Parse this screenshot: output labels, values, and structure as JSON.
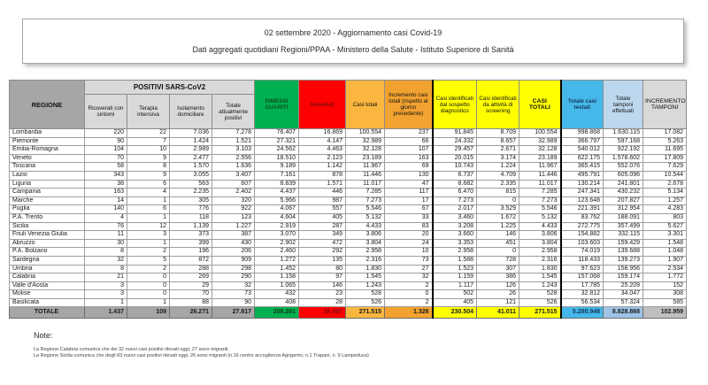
{
  "header": {
    "line1": "02 settembre 2020 - Aggiornamento casi Covid-19",
    "line2": "Dati aggregati quotidiani Regioni/PPAA - Ministero della Salute - Istituto Superiore di Sanità"
  },
  "table": {
    "regione_header": "REGIONE",
    "positivi_group_header": "POSITIVI SARS-CoV2",
    "columns": [
      "Ricoverati con sintomi",
      "Terapia intensiva",
      "Isolamento domiciliare",
      "Totale attualmente positivi",
      "DIMESSI GUARITI",
      "Deceduti",
      "Casi totali",
      "Incremento casi totali (rispetto al giorno precedente)",
      "Casi identificati dal sospetto diagnostico",
      "Casi identificati da attività di screening",
      "CASI TOTALI",
      "Totale casi testati",
      "Totale tamponi effettuati",
      "INCREMENTO TAMPONI"
    ],
    "rows": [
      {
        "regione": "Lombardia",
        "values": [
          "220",
          "22",
          "7.036",
          "7.278",
          "76.407",
          "16.869",
          "100.554",
          "237",
          "91.845",
          "8.709",
          "100.554",
          "998.868",
          "1.630.115",
          "17.082"
        ]
      },
      {
        "regione": "Piemonte",
        "values": [
          "90",
          "7",
          "1.424",
          "1.521",
          "27.321",
          "4.147",
          "32.989",
          "66",
          "24.332",
          "8.657",
          "32.989",
          "366.797",
          "597.168",
          "5.263"
        ]
      },
      {
        "regione": "Emilia-Romagna",
        "values": [
          "104",
          "10",
          "2.989",
          "3.103",
          "24.562",
          "4.463",
          "32.128",
          "107",
          "29.457",
          "2.671",
          "32.128",
          "540.012",
          "922.192",
          "11.695"
        ]
      },
      {
        "regione": "Veneto",
        "values": [
          "70",
          "9",
          "2.477",
          "2.556",
          "18.510",
          "2.123",
          "23.189",
          "163",
          "20.015",
          "3.174",
          "23.189",
          "622.175",
          "1.578.602",
          "17.809"
        ]
      },
      {
        "regione": "Toscana",
        "values": [
          "58",
          "8",
          "1.570",
          "1.636",
          "9.189",
          "1.142",
          "11.967",
          "69",
          "10.743",
          "1.224",
          "11.967",
          "365.415",
          "552.076",
          "7.629"
        ]
      },
      {
        "regione": "Lazio",
        "values": [
          "343",
          "9",
          "3.055",
          "3.407",
          "7.161",
          "878",
          "11.446",
          "130",
          "6.737",
          "4.709",
          "11.446",
          "495.791",
          "605.096",
          "10.544"
        ]
      },
      {
        "regione": "Liguria",
        "values": [
          "38",
          "6",
          "563",
          "607",
          "8.839",
          "1.571",
          "11.017",
          "47",
          "8.682",
          "2.335",
          "11.017",
          "130.214",
          "241.801",
          "2.678"
        ]
      },
      {
        "regione": "Campania",
        "values": [
          "163",
          "4",
          "2.235",
          "2.402",
          "4.437",
          "446",
          "7.285",
          "117",
          "6.470",
          "815",
          "7.285",
          "247.341",
          "430.232",
          "5.134"
        ]
      },
      {
        "regione": "Marche",
        "values": [
          "14",
          "1",
          "305",
          "320",
          "5.966",
          "987",
          "7.273",
          "17",
          "7.273",
          "0",
          "7.273",
          "123.648",
          "207.827",
          "1.257"
        ]
      },
      {
        "regione": "Puglia",
        "values": [
          "140",
          "6",
          "776",
          "922",
          "4.067",
          "557",
          "5.546",
          "67",
          "2.017",
          "3.529",
          "5.546",
          "221.391",
          "312.954",
          "4.283"
        ]
      },
      {
        "regione": "P.A. Trento",
        "values": [
          "4",
          "1",
          "118",
          "123",
          "4.604",
          "405",
          "5.132",
          "33",
          "3.460",
          "1.672",
          "5.132",
          "83.762",
          "188.091",
          "803"
        ]
      },
      {
        "regione": "Sicilia",
        "values": [
          "76",
          "12",
          "1.139",
          "1.227",
          "2.919",
          "287",
          "4.433",
          "83",
          "3.208",
          "1.225",
          "4.433",
          "272.775",
          "357.499",
          "5.627"
        ]
      },
      {
        "regione": "Friuli Venezia Giulia",
        "values": [
          "11",
          "3",
          "373",
          "387",
          "3.070",
          "349",
          "3.806",
          "20",
          "3.660",
          "146",
          "3.806",
          "154.882",
          "332.115",
          "3.301"
        ]
      },
      {
        "regione": "Abruzzo",
        "values": [
          "30",
          "1",
          "399",
          "430",
          "2.902",
          "472",
          "3.804",
          "24",
          "3.353",
          "451",
          "3.804",
          "103.603",
          "159.429",
          "1.548"
        ]
      },
      {
        "regione": "P.A. Bolzano",
        "values": [
          "8",
          "2",
          "196",
          "206",
          "2.460",
          "292",
          "2.958",
          "10",
          "2.958",
          "0",
          "2.958",
          "74.019",
          "139.688",
          "1.048"
        ]
      },
      {
        "regione": "Sardegna",
        "values": [
          "32",
          "5",
          "872",
          "909",
          "1.272",
          "135",
          "2.316",
          "73",
          "1.588",
          "728",
          "2.316",
          "118.433",
          "139.273",
          "1.907"
        ]
      },
      {
        "regione": "Umbria",
        "values": [
          "8",
          "2",
          "288",
          "298",
          "1.452",
          "80",
          "1.830",
          "27",
          "1.523",
          "307",
          "1.830",
          "97.623",
          "158.956",
          "2.534"
        ]
      },
      {
        "regione": "Calabria",
        "values": [
          "21",
          "0",
          "269",
          "290",
          "1.158",
          "97",
          "1.545",
          "32",
          "1.159",
          "386",
          "1.545",
          "157.068",
          "159.174",
          "1.772"
        ]
      },
      {
        "regione": "Valle d'Aosta",
        "values": [
          "3",
          "0",
          "29",
          "32",
          "1.065",
          "146",
          "1.243",
          "2",
          "1.117",
          "126",
          "1.243",
          "17.785",
          "25.209",
          "152"
        ]
      },
      {
        "regione": "Molise",
        "values": [
          "3",
          "0",
          "70",
          "73",
          "432",
          "23",
          "528",
          "0",
          "502",
          "26",
          "528",
          "32.812",
          "34.047",
          "308"
        ]
      },
      {
        "regione": "Basilicata",
        "values": [
          "1",
          "1",
          "88",
          "90",
          "408",
          "28",
          "526",
          "2",
          "405",
          "121",
          "526",
          "56.534",
          "57.324",
          "585"
        ]
      }
    ],
    "totale": {
      "label": "TOTALE",
      "values": [
        "1.437",
        "109",
        "26.271",
        "27.817",
        "208.201",
        "35.497",
        "271.515",
        "1.326",
        "230.504",
        "41.011",
        "271.515",
        "5.280.948",
        "8.828.868",
        "102.959"
      ]
    }
  },
  "notes": {
    "title": "Note:",
    "lines": [
      "La Regione Calabria comunica che dei 32 nuovi casi positivi rilevati oggi, 27 sono migranti.",
      "La Regione Sicilia comunica che degli 83 nuovi casi positivi rilevati oggi, 26 sono migranti (n.16 centro accoglienza Agrigento, n.1 Trapani, n. 9 Lampedusa)"
    ]
  },
  "colors": {
    "dimessi_guariti_bg": "#00B050",
    "deceduti_bg": "#FF0000",
    "casi_totali_bg": "#FAB63F",
    "incremento_casi_bg": "#F2A230",
    "casi_identificati_bg": "#FFFF00",
    "casi_testati_bg": "#45B7E8",
    "tamponi_bg": "#BDD7EE",
    "header_gray_bg": "#A6A6A6",
    "subheader_gray_bg": "#D9D9D9"
  }
}
